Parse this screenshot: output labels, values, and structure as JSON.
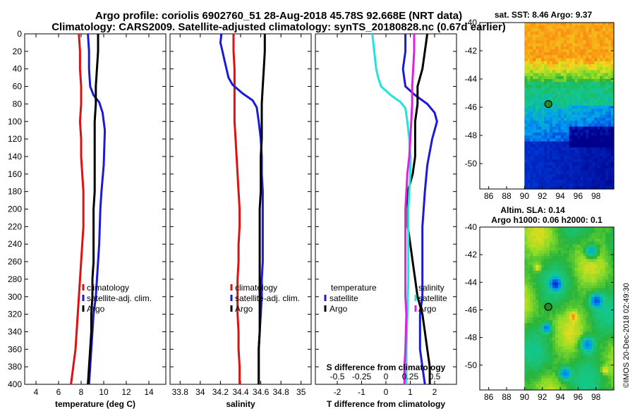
{
  "titles": {
    "line1": "Argo profile: coriolis 6902760_51 28-Aug-2018 45.78S 92.668E (NRT data)",
    "line2": "Climatology: CARS2009. Satellite-adjusted climatology: synTS_20180828.nc (0.67d earlier)"
  },
  "depth_ticks": [
    0,
    20,
    40,
    60,
    80,
    100,
    120,
    140,
    160,
    180,
    200,
    220,
    240,
    260,
    280,
    300,
    320,
    340,
    360,
    380,
    400
  ],
  "credit": "©IMOS 20-Dec-2018 02:49:30",
  "colors": {
    "climatology": "#e01010",
    "satellite": "#1a1ad8",
    "argo": "#000000",
    "cyan": "#22e2e2",
    "magenta": "#e020e0"
  },
  "chart_data": [
    {
      "type": "line",
      "title": "",
      "xlabel": "temperature (deg C)",
      "ylabel": "",
      "xlim": [
        3,
        15.5
      ],
      "ylim": [
        400,
        0
      ],
      "xticks": [
        4,
        6,
        8,
        10,
        12,
        14
      ],
      "xtick_labels": [
        "4",
        "6",
        "8",
        "10",
        "12",
        "14"
      ],
      "legend": [
        "climatology",
        "satellite-adj. clim.",
        "Argo"
      ],
      "series": [
        {
          "name": "climatology",
          "color": "#e01010",
          "points": [
            [
              7.8,
              0
            ],
            [
              7.9,
              20
            ],
            [
              7.9,
              40
            ],
            [
              8.0,
              60
            ],
            [
              8.0,
              80
            ],
            [
              7.9,
              100
            ],
            [
              8.0,
              120
            ],
            [
              8.0,
              140
            ],
            [
              8.1,
              160
            ],
            [
              8.2,
              180
            ],
            [
              8.2,
              200
            ],
            [
              8.2,
              220
            ],
            [
              8.1,
              240
            ],
            [
              8.0,
              260
            ],
            [
              7.9,
              280
            ],
            [
              7.8,
              300
            ],
            [
              7.7,
              320
            ],
            [
              7.6,
              340
            ],
            [
              7.5,
              360
            ],
            [
              7.3,
              380
            ],
            [
              7.1,
              400
            ]
          ]
        },
        {
          "name": "satellite-adj. clim.",
          "color": "#1a1ad8",
          "points": [
            [
              8.6,
              0
            ],
            [
              8.7,
              20
            ],
            [
              8.7,
              40
            ],
            [
              8.8,
              60
            ],
            [
              9.1,
              70
            ],
            [
              9.6,
              78
            ],
            [
              9.9,
              90
            ],
            [
              10.1,
              110
            ],
            [
              10.0,
              150
            ],
            [
              9.8,
              180
            ],
            [
              9.7,
              200
            ],
            [
              9.6,
              240
            ],
            [
              9.5,
              260
            ],
            [
              9.4,
              280
            ],
            [
              9.3,
              300
            ],
            [
              9.1,
              320
            ],
            [
              9.0,
              340
            ],
            [
              8.9,
              360
            ],
            [
              8.8,
              380
            ],
            [
              8.7,
              400
            ]
          ]
        },
        {
          "name": "Argo",
          "color": "#000000",
          "points": [
            [
              9.5,
              0
            ],
            [
              9.5,
              20
            ],
            [
              9.4,
              40
            ],
            [
              9.3,
              60
            ],
            [
              9.3,
              80
            ],
            [
              9.2,
              100
            ],
            [
              9.2,
              120
            ],
            [
              9.2,
              140
            ],
            [
              9.2,
              160
            ],
            [
              9.2,
              180
            ],
            [
              9.1,
              200
            ],
            [
              9.1,
              220
            ],
            [
              9.1,
              240
            ],
            [
              9.1,
              260
            ],
            [
              9.0,
              280
            ],
            [
              9.0,
              300
            ],
            [
              8.9,
              320
            ],
            [
              8.9,
              340
            ],
            [
              8.8,
              360
            ],
            [
              8.7,
              380
            ],
            [
              8.6,
              400
            ]
          ]
        }
      ]
    },
    {
      "type": "line",
      "title": "",
      "xlabel": "salinity",
      "ylabel": "",
      "xlim": [
        33.7,
        35.1
      ],
      "ylim": [
        400,
        0
      ],
      "xticks": [
        33.8,
        34.0,
        34.2,
        34.4,
        34.6,
        34.8,
        35.0
      ],
      "xtick_labels": [
        "33.8",
        "34",
        "34.2",
        "34.4",
        "34.6",
        "34.8",
        "35"
      ],
      "legend": [
        "climatology",
        "satellite-adj. clim.",
        "Argo"
      ],
      "series": [
        {
          "name": "climatology",
          "color": "#e01010",
          "points": [
            [
              34.33,
              0
            ],
            [
              34.33,
              20
            ],
            [
              34.34,
              40
            ],
            [
              34.34,
              60
            ],
            [
              34.34,
              80
            ],
            [
              34.34,
              100
            ],
            [
              34.35,
              120
            ],
            [
              34.36,
              140
            ],
            [
              34.37,
              160
            ],
            [
              34.38,
              180
            ],
            [
              34.39,
              200
            ],
            [
              34.39,
              220
            ],
            [
              34.38,
              240
            ],
            [
              34.38,
              260
            ],
            [
              34.37,
              280
            ],
            [
              34.37,
              300
            ],
            [
              34.37,
              320
            ],
            [
              34.38,
              340
            ],
            [
              34.38,
              360
            ],
            [
              34.39,
              380
            ],
            [
              34.39,
              400
            ]
          ]
        },
        {
          "name": "satellite-adj. clim.",
          "color": "#1a1ad8",
          "points": [
            [
              34.21,
              0
            ],
            [
              34.2,
              10
            ],
            [
              34.22,
              20
            ],
            [
              34.24,
              30
            ],
            [
              34.26,
              40
            ],
            [
              34.28,
              50
            ],
            [
              34.32,
              58
            ],
            [
              34.42,
              68
            ],
            [
              34.52,
              76
            ],
            [
              34.56,
              84
            ],
            [
              34.58,
              100
            ],
            [
              34.6,
              120
            ],
            [
              34.61,
              140
            ],
            [
              34.61,
              160
            ],
            [
              34.62,
              180
            ],
            [
              34.62,
              200
            ],
            [
              34.62,
              240
            ],
            [
              34.62,
              260
            ],
            [
              34.61,
              280
            ],
            [
              34.61,
              300
            ],
            [
              34.6,
              320
            ],
            [
              34.59,
              340
            ],
            [
              34.58,
              360
            ],
            [
              34.58,
              380
            ],
            [
              34.58,
              400
            ]
          ]
        },
        {
          "name": "Argo",
          "color": "#000000",
          "points": [
            [
              34.64,
              0
            ],
            [
              34.64,
              20
            ],
            [
              34.63,
              40
            ],
            [
              34.62,
              60
            ],
            [
              34.61,
              80
            ],
            [
              34.61,
              100
            ],
            [
              34.61,
              120
            ],
            [
              34.6,
              140
            ],
            [
              34.6,
              160
            ],
            [
              34.6,
              180
            ],
            [
              34.59,
              200
            ],
            [
              34.59,
              220
            ],
            [
              34.59,
              240
            ],
            [
              34.59,
              260
            ],
            [
              34.59,
              280
            ],
            [
              34.59,
              300
            ],
            [
              34.59,
              320
            ],
            [
              34.59,
              340
            ],
            [
              34.58,
              360
            ],
            [
              34.58,
              380
            ],
            [
              34.58,
              400
            ]
          ]
        }
      ]
    },
    {
      "type": "line",
      "title": "S difference from climatology",
      "xlabel": "T difference from climatology",
      "ylabel": "",
      "xlim": [
        -2.9,
        2.9
      ],
      "ylim": [
        400,
        0
      ],
      "xticks": [
        -2,
        -1,
        0,
        1,
        2
      ],
      "xtick_labels": [
        "-2",
        "-1",
        "0",
        "1",
        "2"
      ],
      "top_axis_ticks": [
        -0.5,
        -0.25,
        0,
        0.25,
        0.5
      ],
      "top_axis_labels": [
        "-0.5",
        "-0.25",
        "0",
        "0.25",
        "0.5"
      ],
      "legend_left": [
        "temperature",
        "satellite",
        "Argo"
      ],
      "legend_right": [
        "salinity",
        "satellite",
        "Argo"
      ],
      "series": [
        {
          "name": "temperature satellite",
          "color": "#1a1ad8",
          "points": [
            [
              0.8,
              0
            ],
            [
              0.8,
              20
            ],
            [
              0.7,
              40
            ],
            [
              0.8,
              60
            ],
            [
              1.2,
              70
            ],
            [
              1.7,
              80
            ],
            [
              2.0,
              90
            ],
            [
              2.1,
              100
            ],
            [
              1.9,
              120
            ],
            [
              1.7,
              150
            ],
            [
              1.6,
              180
            ],
            [
              1.5,
              220
            ],
            [
              1.5,
              280
            ],
            [
              1.5,
              300
            ],
            [
              1.4,
              320
            ],
            [
              1.4,
              360
            ],
            [
              1.5,
              380
            ],
            [
              1.6,
              400
            ]
          ]
        },
        {
          "name": "temperature Argo",
          "color": "#000000",
          "points": [
            [
              1.7,
              0
            ],
            [
              1.6,
              20
            ],
            [
              1.5,
              40
            ],
            [
              1.3,
              60
            ],
            [
              1.3,
              80
            ],
            [
              1.2,
              100
            ],
            [
              1.2,
              120
            ],
            [
              1.2,
              140
            ],
            [
              1.1,
              160
            ],
            [
              0.9,
              180
            ],
            [
              0.9,
              200
            ],
            [
              0.9,
              220
            ],
            [
              1.0,
              240
            ],
            [
              1.1,
              260
            ],
            [
              1.2,
              280
            ],
            [
              1.3,
              300
            ],
            [
              1.5,
              320
            ],
            [
              1.6,
              340
            ],
            [
              1.7,
              360
            ],
            [
              1.8,
              380
            ],
            [
              1.8,
              400
            ]
          ]
        },
        {
          "name": "salinity satellite",
          "color": "#22e2e2",
          "points": [
            [
              -0.14,
              0
            ],
            [
              -0.13,
              10
            ],
            [
              -0.12,
              20
            ],
            [
              -0.1,
              40
            ],
            [
              -0.08,
              50
            ],
            [
              -0.05,
              60
            ],
            [
              0.05,
              70
            ],
            [
              0.15,
              78
            ],
            [
              0.2,
              85
            ],
            [
              0.22,
              100
            ],
            [
              0.24,
              120
            ],
            [
              0.25,
              140
            ],
            [
              0.25,
              160
            ],
            [
              0.24,
              180
            ],
            [
              0.23,
              200
            ],
            [
              0.23,
              240
            ],
            [
              0.23,
              280
            ],
            [
              0.22,
              320
            ],
            [
              0.21,
              360
            ],
            [
              0.21,
              400
            ]
          ]
        },
        {
          "name": "salinity Argo",
          "color": "#e020e0",
          "points": [
            [
              0.29,
              0
            ],
            [
              0.29,
              20
            ],
            [
              0.28,
              40
            ],
            [
              0.27,
              60
            ],
            [
              0.27,
              80
            ],
            [
              0.26,
              100
            ],
            [
              0.25,
              120
            ],
            [
              0.24,
              140
            ],
            [
              0.22,
              160
            ],
            [
              0.21,
              180
            ],
            [
              0.2,
              200
            ],
            [
              0.2,
              240
            ],
            [
              0.2,
              280
            ],
            [
              0.2,
              300
            ],
            [
              0.21,
              320
            ],
            [
              0.2,
              360
            ],
            [
              0.19,
              380
            ],
            [
              0.19,
              400
            ]
          ]
        }
      ]
    },
    {
      "type": "heatmap",
      "title": "sat. SST: 8.46 Argo: 9.37",
      "xlim": [
        85,
        100
      ],
      "ylim": [
        -51.8,
        -40
      ],
      "xticks": [
        86,
        88,
        90,
        92,
        94,
        96,
        98
      ],
      "yticks": [
        -40,
        -42,
        -44,
        -46,
        -48,
        -50
      ],
      "data_xlim": [
        90,
        100
      ],
      "marker": [
        92.668,
        -45.78
      ]
    },
    {
      "type": "heatmap",
      "title": "Altim. SLA: 0.14",
      "subtitle": "Argo h1000: 0.06 h2000: 0.1",
      "xlim": [
        85,
        100
      ],
      "ylim": [
        -51.8,
        -40
      ],
      "xticks": [
        86,
        88,
        90,
        92,
        94,
        96,
        98
      ],
      "yticks": [
        -40,
        -42,
        -44,
        -46,
        -48,
        -50
      ],
      "data_xlim": [
        90,
        100
      ],
      "marker": [
        92.668,
        -45.78
      ]
    }
  ]
}
